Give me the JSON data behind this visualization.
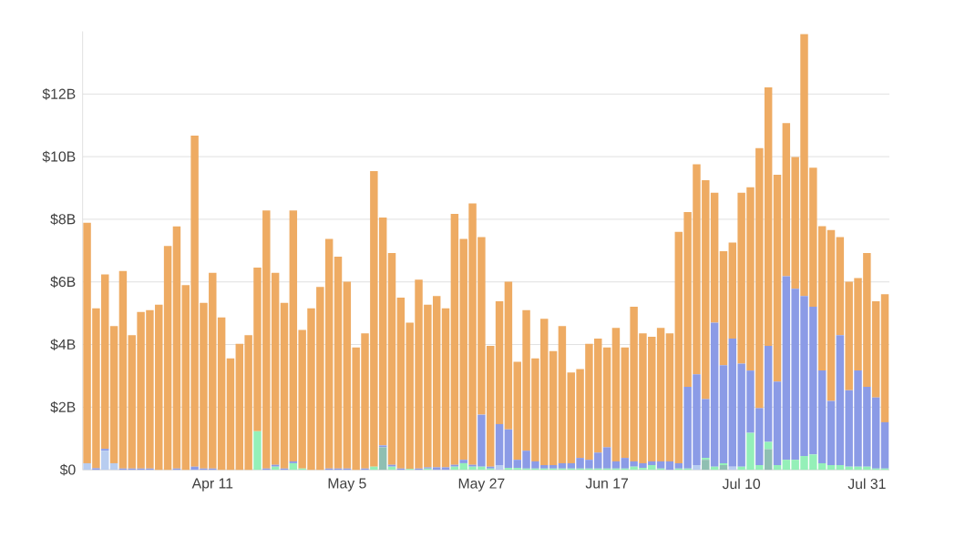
{
  "chart_data": {
    "type": "bar",
    "stacked": true,
    "grid": "y",
    "categories": [
      null,
      null,
      null,
      null,
      null,
      null,
      null,
      null,
      null,
      null,
      null,
      null,
      null,
      null,
      "Apr 11",
      null,
      null,
      null,
      null,
      null,
      null,
      null,
      null,
      null,
      null,
      null,
      null,
      null,
      null,
      "May 5",
      null,
      null,
      null,
      null,
      null,
      null,
      null,
      null,
      null,
      null,
      null,
      null,
      null,
      null,
      "May 27",
      null,
      null,
      null,
      null,
      null,
      null,
      null,
      null,
      null,
      null,
      null,
      null,
      null,
      "Jun 17",
      null,
      null,
      null,
      null,
      null,
      null,
      null,
      null,
      null,
      null,
      null,
      null,
      null,
      null,
      "Jul 10",
      null,
      null,
      null,
      null,
      null,
      null,
      null,
      null,
      null,
      null,
      null,
      null,
      null,
      "Jul 31",
      null,
      null
    ],
    "ylim": [
      0,
      14
    ],
    "yticks": [
      {
        "value": 0,
        "label": "$0"
      },
      {
        "value": 2,
        "label": "$2B"
      },
      {
        "value": 4,
        "label": "$4B"
      },
      {
        "value": 6,
        "label": "$6B"
      },
      {
        "value": 8,
        "label": "$8B"
      },
      {
        "value": 10,
        "label": "$10B"
      },
      {
        "value": 12,
        "label": "$12B"
      }
    ],
    "series": [
      {
        "color": "#b8cdf0",
        "values": [
          0.21,
          0,
          0.61,
          0.21,
          0,
          0,
          0,
          0,
          0,
          0,
          0,
          0,
          0,
          0,
          0,
          0,
          0,
          0,
          0,
          0,
          0,
          0,
          0,
          0,
          0,
          0,
          0,
          0,
          0,
          0,
          0,
          0,
          0,
          0,
          0,
          0,
          0,
          0,
          0,
          0,
          0,
          0,
          0,
          0,
          0,
          0,
          0.15,
          0,
          0,
          0,
          0,
          0,
          0,
          0,
          0,
          0,
          0,
          0,
          0,
          0,
          0,
          0,
          0,
          0,
          0,
          0,
          0,
          0,
          0.15,
          0,
          0,
          0,
          0.1,
          0,
          0,
          0,
          0,
          0,
          0,
          0,
          0,
          0,
          0,
          0,
          0,
          0,
          0,
          0,
          0,
          0
        ]
      },
      {
        "color": "#8fbfb2",
        "values": [
          0,
          0,
          0,
          0,
          0,
          0,
          0,
          0,
          0,
          0,
          0,
          0,
          0,
          0,
          0,
          0,
          0,
          0,
          0,
          0,
          0,
          0,
          0,
          0,
          0,
          0,
          0,
          0,
          0,
          0,
          0,
          0,
          0,
          0.72,
          0,
          0,
          0,
          0,
          0,
          0,
          0,
          0,
          0,
          0,
          0,
          0,
          0,
          0,
          0,
          0,
          0,
          0,
          0,
          0,
          0,
          0,
          0,
          0,
          0,
          0,
          0,
          0,
          0,
          0,
          0,
          0,
          0,
          0,
          0,
          0.32,
          0,
          0.15,
          0,
          0,
          0,
          0,
          0.66,
          0,
          0,
          0,
          0,
          0,
          0,
          0,
          0,
          0,
          0,
          0,
          0,
          0
        ]
      },
      {
        "color": "#94f0b8",
        "values": [
          0,
          0,
          0,
          0,
          0,
          0,
          0,
          0,
          0,
          0,
          0,
          0,
          0,
          0,
          0,
          0,
          0,
          0,
          0,
          1.23,
          0,
          0.1,
          0,
          0.21,
          0.04,
          0,
          0,
          0,
          0,
          0,
          0,
          0,
          0.1,
          0,
          0.1,
          0,
          0.03,
          0,
          0.04,
          0,
          0,
          0.1,
          0.21,
          0.1,
          0.1,
          0.04,
          0,
          0.06,
          0.06,
          0.04,
          0.04,
          0.04,
          0.04,
          0.04,
          0.04,
          0.04,
          0.04,
          0.04,
          0.04,
          0.04,
          0.04,
          0.1,
          0.06,
          0.15,
          0.04,
          0,
          0.04,
          0.04,
          0,
          0.06,
          0.1,
          0.06,
          0,
          0.1,
          1.18,
          0.15,
          0.23,
          0.15,
          0.32,
          0.32,
          0.44,
          0.49,
          0.21,
          0.15,
          0.15,
          0.1,
          0.1,
          0.1,
          0.04,
          0.04
        ]
      },
      {
        "color": "#8b9be6",
        "values": [
          0,
          0.05,
          0.06,
          0,
          0.04,
          0.04,
          0.04,
          0.04,
          0,
          0,
          0.04,
          0,
          0.1,
          0.04,
          0.04,
          0,
          0,
          0,
          0,
          0,
          0.04,
          0.06,
          0.04,
          0.06,
          0,
          0,
          0,
          0.04,
          0.04,
          0.04,
          0,
          0.04,
          0,
          0.06,
          0.06,
          0.04,
          0,
          0.04,
          0.04,
          0.08,
          0.08,
          0.06,
          0.11,
          0.06,
          1.66,
          0.06,
          1.31,
          1.23,
          0.26,
          0.57,
          0.23,
          0.11,
          0.11,
          0.17,
          0.17,
          0.34,
          0.28,
          0.51,
          0.68,
          0.23,
          0.34,
          0.17,
          0.15,
          0.12,
          0.23,
          0.27,
          0.17,
          2.61,
          2.9,
          1.88,
          4.6,
          3.13,
          4.09,
          3.29,
          1.99,
          1.82,
          3.07,
          2.67,
          5.86,
          5.46,
          5.11,
          4.72,
          2.96,
          2.05,
          4.15,
          2.44,
          3.07,
          2.55,
          2.27,
          1.48
        ]
      },
      {
        "color": "#eeab63",
        "values": [
          7.68,
          5.11,
          5.57,
          4.38,
          6.31,
          4.26,
          5.0,
          5.06,
          5.27,
          7.15,
          7.73,
          5.9,
          10.57,
          5.29,
          6.25,
          4.87,
          3.56,
          4.02,
          4.3,
          5.23,
          8.24,
          6.13,
          5.29,
          8.01,
          4.43,
          5.16,
          5.84,
          7.33,
          6.77,
          5.97,
          3.91,
          4.32,
          9.44,
          7.28,
          6.76,
          5.46,
          4.67,
          6.03,
          5.19,
          5.47,
          5.08,
          8.01,
          7.05,
          8.35,
          5.67,
          3.86,
          3.92,
          4.72,
          3.13,
          4.49,
          3.29,
          4.67,
          3.64,
          4.38,
          2.9,
          2.84,
          3.7,
          3.64,
          3.19,
          4.26,
          3.53,
          4.94,
          4.15,
          3.98,
          4.26,
          4.09,
          7.39,
          5.58,
          6.71,
          6.99,
          4.15,
          3.64,
          3.07,
          5.46,
          5.85,
          8.3,
          8.25,
          6.6,
          4.89,
          4.21,
          8.36,
          4.44,
          4.61,
          5.46,
          3.13,
          3.47,
          2.95,
          4.27,
          3.07,
          4.09
        ]
      }
    ]
  }
}
